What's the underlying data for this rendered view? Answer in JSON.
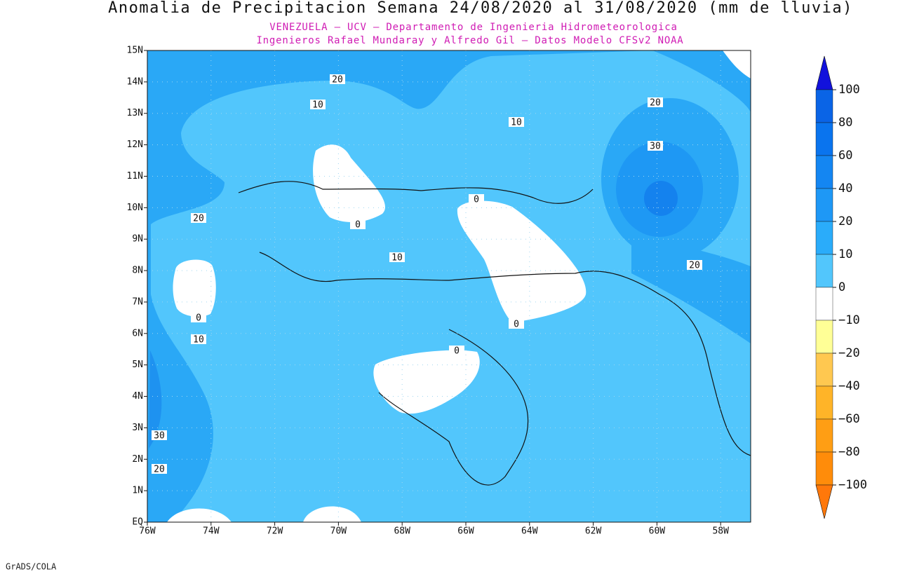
{
  "title": "Anomalia de Precipitacion Semana 24/08/2020 al 31/08/2020 (mm de lluvia)",
  "subtitle_lines": [
    "VENEZUELA – UCV – Departamento de Ingenieria Hidrometeorologica",
    "Ingenieros Rafael Mundaray y Alfredo Gil – Datos Modelo CFSv2 NOAA"
  ],
  "lat_labels": [
    "15N",
    "14N",
    "13N",
    "12N",
    "11N",
    "10N",
    "9N",
    "8N",
    "7N",
    "6N",
    "5N",
    "4N",
    "3N",
    "2N",
    "1N",
    "EQ"
  ],
  "lon_labels": [
    "76W",
    "74W",
    "72W",
    "70W",
    "68W",
    "66W",
    "64W",
    "62W",
    "60W",
    "58W"
  ],
  "colorbar": {
    "labels": [
      "100",
      "80",
      "60",
      "40",
      "20",
      "10",
      "0",
      "−10",
      "−20",
      "−40",
      "−60",
      "−80",
      "−100"
    ],
    "colors": [
      "#1212dc",
      "#0a64e6",
      "#0a74ee",
      "#1486f2",
      "#1e98f6",
      "#2aacfa",
      "#52c6fc",
      "#ffffff",
      "#ffff96",
      "#ffc850",
      "#ffb428",
      "#ff9e14",
      "#ff8c0a",
      "#ff780a"
    ]
  },
  "contour_labels": [
    "20",
    "10",
    "10",
    "20",
    "30",
    "0",
    "0",
    "20",
    "10",
    "20",
    "0",
    "0",
    "10",
    "0",
    "30",
    "20"
  ],
  "footer": "GrADS/COLA"
}
